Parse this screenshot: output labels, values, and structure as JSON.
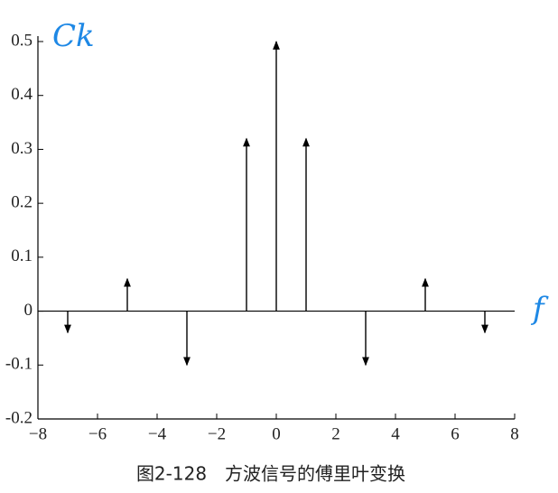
{
  "chart_data": {
    "type": "stem",
    "annotations": [
      "Ck",
      "f"
    ],
    "caption": "图2-128　方波信号的傅里叶变换",
    "x": [
      -7,
      -5,
      -3,
      -1,
      0,
      1,
      3,
      5,
      7
    ],
    "values": [
      -0.04,
      0.06,
      -0.1,
      0.32,
      0.5,
      0.32,
      -0.1,
      0.06,
      -0.04
    ],
    "color": "#000000",
    "annotation_color": "#1e88e5",
    "xlim": [
      -8,
      8
    ],
    "xticks": [
      {
        "value": -8,
        "label": "−8"
      },
      {
        "value": -6,
        "label": "−6"
      },
      {
        "value": -4,
        "label": "−4"
      },
      {
        "value": -2,
        "label": "−2"
      },
      0,
      2,
      4,
      6,
      8
    ],
    "ylim": [
      -0.2,
      0.5
    ],
    "yticks": [
      -0.2,
      -0.1,
      0,
      0.1,
      0.2,
      0.3,
      0.4,
      0.5
    ]
  }
}
